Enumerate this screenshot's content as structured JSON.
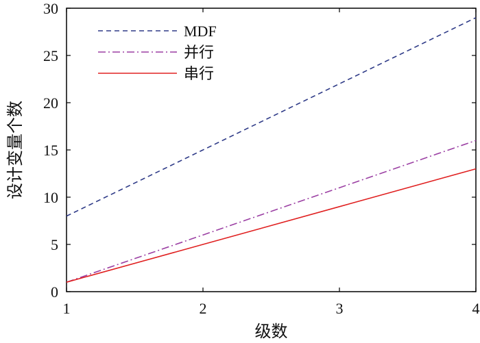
{
  "chart_data": {
    "type": "line",
    "title": "",
    "xlabel": "级数",
    "ylabel": "设计变量个数",
    "xlim": [
      1,
      4
    ],
    "ylim": [
      0,
      30
    ],
    "xticks": [
      1,
      2,
      3,
      4
    ],
    "yticks": [
      0,
      5,
      10,
      15,
      20,
      25,
      30
    ],
    "grid": false,
    "legend_position": "top-left",
    "series": [
      {
        "name": "MDF",
        "x": [
          1,
          2,
          3,
          4
        ],
        "y": [
          8,
          15,
          22,
          29
        ],
        "color": "#2e3a87",
        "style": "dashed"
      },
      {
        "name": "并行",
        "x": [
          1,
          2,
          3,
          4
        ],
        "y": [
          1,
          6,
          11,
          16
        ],
        "color": "#9b3fa3",
        "style": "dashdot"
      },
      {
        "name": "串行",
        "x": [
          1,
          2,
          3,
          4
        ],
        "y": [
          1,
          5,
          9,
          13
        ],
        "color": "#e02020",
        "style": "solid"
      }
    ]
  }
}
